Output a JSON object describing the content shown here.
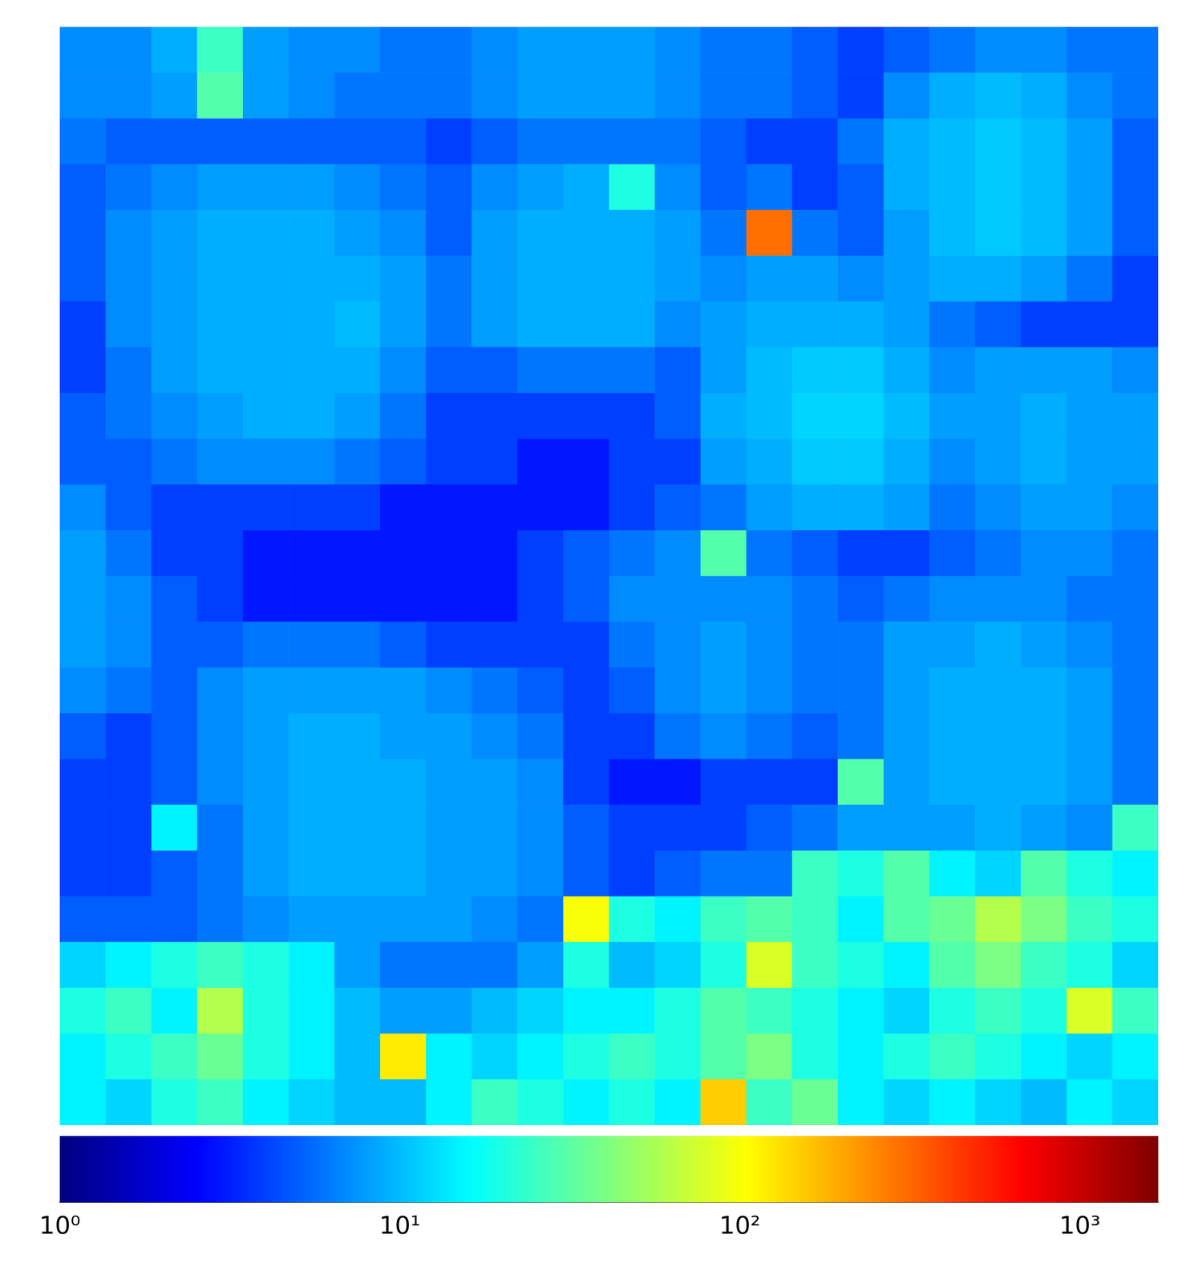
{
  "chart_data": {
    "type": "heatmap",
    "cells": [
      [
        7,
        7,
        9,
        25,
        8,
        7,
        7,
        6,
        6,
        7,
        8,
        8,
        8,
        7,
        6,
        6,
        5,
        4,
        5,
        6,
        7,
        7,
        6,
        6
      ],
      [
        7,
        7,
        8,
        30,
        8,
        7,
        6,
        6,
        6,
        7,
        8,
        8,
        8,
        7,
        6,
        6,
        5,
        4,
        7,
        9,
        10,
        9,
        7,
        6
      ],
      [
        6,
        5,
        5,
        5,
        5,
        5,
        5,
        5,
        4,
        5,
        6,
        6,
        6,
        6,
        5,
        4,
        4,
        6,
        9,
        10,
        11,
        10,
        8,
        5
      ],
      [
        5,
        6,
        7,
        8,
        8,
        8,
        7,
        6,
        5,
        7,
        8,
        9,
        20,
        7,
        5,
        6,
        4,
        5,
        9,
        10,
        11,
        10,
        8,
        5
      ],
      [
        5,
        7,
        8,
        9,
        9,
        9,
        8,
        7,
        5,
        8,
        9,
        9,
        9,
        8,
        6,
        300,
        6,
        5,
        8,
        10,
        11,
        10,
        8,
        5
      ],
      [
        5,
        7,
        8,
        9,
        9,
        9,
        9,
        8,
        6,
        8,
        9,
        9,
        9,
        8,
        7,
        8,
        8,
        7,
        8,
        9,
        9,
        8,
        6,
        4
      ],
      [
        4,
        7,
        8,
        9,
        9,
        9,
        10,
        8,
        6,
        8,
        9,
        9,
        9,
        7,
        8,
        9,
        9,
        9,
        8,
        6,
        5,
        4,
        4,
        4
      ],
      [
        4,
        6,
        8,
        9,
        9,
        9,
        9,
        7,
        5,
        5,
        6,
        6,
        6,
        5,
        8,
        10,
        11,
        11,
        9,
        7,
        8,
        8,
        8,
        7
      ],
      [
        5,
        6,
        7,
        8,
        9,
        9,
        8,
        6,
        4,
        4,
        4,
        4,
        4,
        5,
        9,
        10,
        12,
        12,
        10,
        8,
        8,
        9,
        8,
        8
      ],
      [
        5,
        5,
        6,
        7,
        7,
        7,
        6,
        5,
        4,
        4,
        3,
        3,
        4,
        4,
        8,
        9,
        11,
        11,
        9,
        7,
        8,
        9,
        8,
        8
      ],
      [
        7,
        5,
        4,
        4,
        4,
        4,
        4,
        3,
        3,
        3,
        3,
        3,
        4,
        5,
        6,
        8,
        9,
        9,
        8,
        6,
        7,
        8,
        8,
        7
      ],
      [
        8,
        6,
        4,
        4,
        3,
        3,
        3,
        3,
        3,
        3,
        4,
        5,
        6,
        7,
        30,
        6,
        5,
        4,
        4,
        5,
        6,
        7,
        7,
        6
      ],
      [
        8,
        7,
        5,
        4,
        3,
        3,
        3,
        3,
        3,
        3,
        4,
        5,
        7,
        7,
        7,
        7,
        6,
        5,
        6,
        7,
        7,
        7,
        6,
        6
      ],
      [
        8,
        7,
        5,
        5,
        6,
        6,
        6,
        5,
        4,
        4,
        4,
        4,
        6,
        7,
        8,
        7,
        6,
        6,
        8,
        8,
        9,
        8,
        7,
        6
      ],
      [
        7,
        6,
        5,
        7,
        8,
        8,
        8,
        8,
        7,
        6,
        5,
        4,
        5,
        7,
        8,
        7,
        6,
        6,
        8,
        9,
        9,
        9,
        8,
        6
      ],
      [
        5,
        4,
        5,
        7,
        8,
        9,
        9,
        8,
        8,
        7,
        6,
        4,
        4,
        6,
        7,
        6,
        5,
        6,
        8,
        9,
        9,
        9,
        8,
        6
      ],
      [
        4,
        4,
        5,
        7,
        8,
        9,
        9,
        9,
        8,
        8,
        7,
        4,
        3,
        3,
        4,
        4,
        4,
        30,
        8,
        9,
        9,
        9,
        8,
        6
      ],
      [
        4,
        4,
        15,
        6,
        8,
        9,
        9,
        9,
        8,
        8,
        7,
        5,
        4,
        4,
        4,
        5,
        6,
        8,
        8,
        8,
        9,
        8,
        7,
        25
      ],
      [
        4,
        4,
        5,
        6,
        8,
        9,
        9,
        9,
        8,
        8,
        7,
        5,
        4,
        5,
        6,
        6,
        25,
        20,
        30,
        15,
        12,
        30,
        20,
        15
      ],
      [
        5,
        5,
        5,
        6,
        7,
        8,
        8,
        8,
        8,
        7,
        6,
        100,
        20,
        15,
        25,
        30,
        25,
        15,
        30,
        35,
        60,
        40,
        25,
        20
      ],
      [
        12,
        15,
        20,
        25,
        20,
        15,
        8,
        6,
        6,
        6,
        8,
        20,
        10,
        12,
        20,
        80,
        25,
        20,
        15,
        30,
        40,
        25,
        20,
        12
      ],
      [
        20,
        25,
        15,
        60,
        20,
        15,
        10,
        8,
        8,
        10,
        12,
        15,
        15,
        20,
        30,
        25,
        20,
        15,
        12,
        20,
        25,
        20,
        80,
        25
      ],
      [
        15,
        20,
        25,
        35,
        20,
        15,
        10,
        120,
        15,
        12,
        15,
        20,
        25,
        20,
        30,
        40,
        20,
        15,
        20,
        25,
        20,
        15,
        12,
        15
      ],
      [
        15,
        12,
        20,
        25,
        15,
        12,
        10,
        10,
        15,
        25,
        20,
        15,
        20,
        15,
        150,
        25,
        35,
        15,
        12,
        15,
        12,
        10,
        15,
        12
      ]
    ],
    "color_range": [
      1,
      1700
    ],
    "color_ticks": [
      {
        "value": 1,
        "label": "10⁰"
      },
      {
        "value": 10,
        "label": "10¹"
      },
      {
        "value": 100,
        "label": "10²"
      },
      {
        "value": 1000,
        "label": "10³"
      }
    ],
    "log": true,
    "tick_labels": false
  }
}
